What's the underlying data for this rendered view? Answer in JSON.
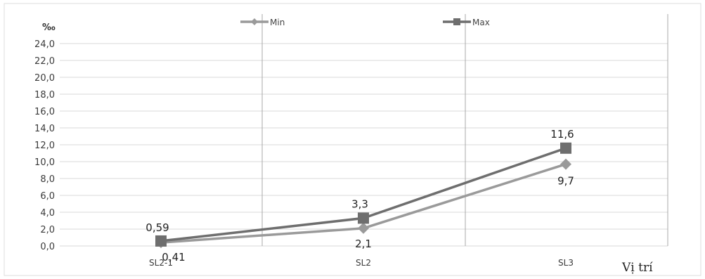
{
  "chart_data": {
    "type": "line",
    "categories": [
      "SL2-1",
      "SL2",
      "SL3"
    ],
    "series": [
      {
        "name": "Min",
        "values": [
          0.41,
          2.1,
          9.7
        ],
        "labels": [
          "0,41",
          "2,1",
          "9,7"
        ],
        "color": "#9a9a9a",
        "marker": "diamond"
      },
      {
        "name": "Max",
        "values": [
          0.59,
          3.3,
          11.6
        ],
        "labels": [
          "0,59",
          "3,3",
          "11,6"
        ],
        "color": "#6e6e6e",
        "marker": "square"
      }
    ],
    "ylabel": "‰",
    "xlabel": "Vị trí",
    "ylim": [
      0,
      24
    ],
    "yticks": [
      "0,0",
      "2,0",
      "4,0",
      "6,0",
      "8,0",
      "10,0",
      "12,0",
      "14,0",
      "16,0",
      "18,0",
      "20,0",
      "22,0",
      "24,0"
    ],
    "grid": "horizontal and vertical",
    "legend_position": "top"
  }
}
